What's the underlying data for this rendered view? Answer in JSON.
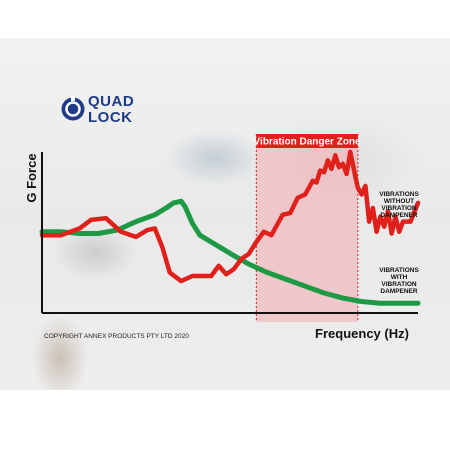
{
  "logo": {
    "line1": "QUAD",
    "line2": "LOCK"
  },
  "copyright": "COPYRIGHT ANNEX PRODUCTS PTY LTD 2020",
  "colors": {
    "red": "#e0201b",
    "green": "#1e9a45",
    "zone": "#f4a9ae",
    "zone_border": "#e0201b",
    "logo": "#1f3b8a"
  },
  "chart_data": {
    "type": "line",
    "xlabel": "Frequency (Hz)",
    "ylabel": "G Force",
    "xlim": [
      0,
      100
    ],
    "ylim": [
      0,
      100
    ],
    "grid": false,
    "tick_labels": false,
    "highlight_zone": {
      "label": "Vibration Danger Zone",
      "x_start": 57,
      "x_end": 84
    },
    "series": [
      {
        "name": "Vibrations without vibration dampener",
        "label_lines": [
          "VIBRATIONS",
          "WITHOUT",
          "VIBRATION",
          "DAMPENER"
        ],
        "color": "#e0201b",
        "x": [
          0,
          5,
          10,
          13,
          17,
          21,
          25,
          28,
          30,
          32,
          34,
          37,
          40,
          43,
          45,
          47,
          49,
          51,
          53,
          55,
          57,
          59,
          61,
          63,
          64,
          66,
          68,
          70,
          72,
          73,
          74,
          75,
          76,
          77,
          78,
          79,
          80,
          81,
          82,
          83,
          84,
          85,
          86,
          87,
          88,
          89,
          90,
          91,
          92,
          93,
          94,
          95,
          96,
          98,
          100
        ],
        "y": [
          44,
          44,
          48,
          53,
          54,
          46,
          43,
          47,
          48,
          37,
          22,
          17,
          20,
          20,
          20,
          26,
          21,
          24,
          30,
          33,
          40,
          46,
          44,
          52,
          56,
          57,
          66,
          68,
          76,
          75,
          82,
          81,
          88,
          83,
          91,
          84,
          86,
          80,
          93,
          82,
          72,
          68,
          73,
          52,
          60,
          46,
          55,
          49,
          58,
          45,
          55,
          46,
          52,
          52,
          63
        ]
      },
      {
        "name": "Vibrations with vibration dampener",
        "label_lines": [
          "VIBRATIONS",
          "WITH",
          "VIBRATION",
          "DAMPENER"
        ],
        "color": "#1e9a45",
        "x": [
          0,
          5,
          10,
          15,
          20,
          25,
          30,
          33,
          35,
          37,
          38,
          40,
          42,
          45,
          48,
          51,
          55,
          60,
          65,
          70,
          75,
          80,
          85,
          90,
          95,
          100
        ],
        "y": [
          46,
          46,
          45,
          45,
          47,
          52,
          56,
          60,
          63,
          64,
          61,
          51,
          44,
          40,
          36,
          32,
          27,
          22,
          18,
          14,
          10,
          7,
          5,
          4,
          4,
          4
        ]
      }
    ]
  }
}
